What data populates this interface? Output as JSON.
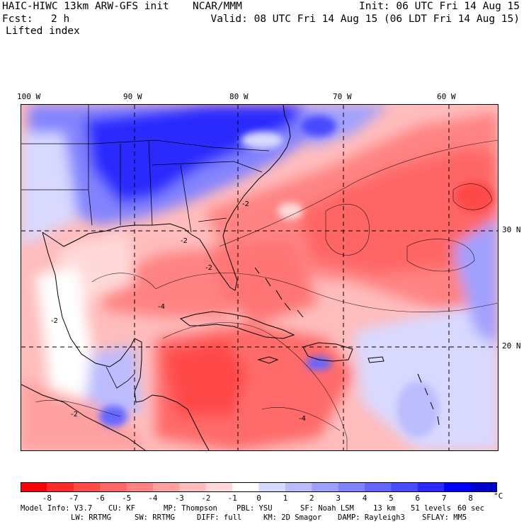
{
  "header": {
    "model_title": "HAIC-HIWC 13km ARW-GFS init",
    "org": "NCAR/MMM",
    "init": "Init: 06 UTC Fri 14 Aug 15",
    "fcst_label": "Fcst:",
    "fcst_value": "2 h",
    "valid": "Valid: 08 UTC Fri 14 Aug 15 (06 LDT Fri 14 Aug 15)",
    "field": "Lifted index"
  },
  "map": {
    "lon_labels": [
      "100 W",
      "90 W",
      "80 W",
      "70 W",
      "60 W"
    ],
    "lat_labels": [
      "30 N",
      "20 N"
    ],
    "contour_labels": [
      "-2",
      "-2",
      "-2",
      "-2",
      "-4",
      "-4",
      "-2"
    ]
  },
  "colorbar": {
    "unit": "°C",
    "tick_labels": [
      "-8",
      "-7",
      "-6",
      "-5",
      "-4",
      "-3",
      "-2",
      "-1",
      "0",
      "1",
      "2",
      "3",
      "4",
      "5",
      "6",
      "7",
      "8"
    ],
    "colors": [
      "#ff0000",
      "#ff2a2a",
      "#ff4a4a",
      "#fe6666",
      "#ff8383",
      "#ffa0a0",
      "#ffbcbc",
      "#ffd9d9",
      "#ffffff",
      "#d9d9ff",
      "#bcbcff",
      "#a0a0ff",
      "#8383ff",
      "#6666ff",
      "#4a4aff",
      "#2a2aff",
      "#0000ff",
      "#0000cc"
    ]
  },
  "footer": {
    "line1": [
      "Model Info: V3.7",
      "CU: KF",
      "MP: Thompson",
      "PBL: YSU",
      "SF: Noah LSM",
      "13 km",
      "51 levels",
      "60 sec"
    ],
    "line2": [
      "LW: RRTMG",
      "SW: RRTMG",
      "DIFF: full",
      "KM: 2D Smagor",
      "DAMP: Rayleigh3",
      "SFLAY: MM5"
    ]
  }
}
